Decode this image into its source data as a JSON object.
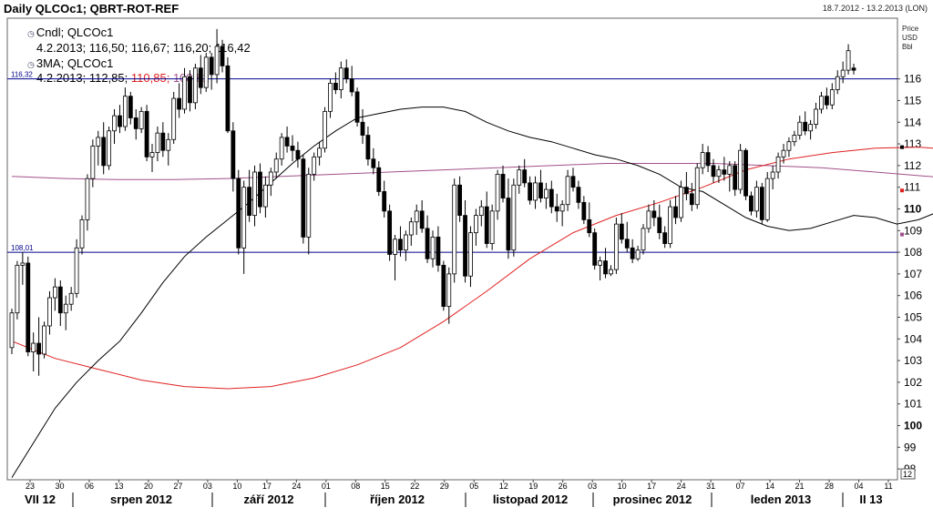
{
  "header": {
    "title": "Daily QLCOc1; QBRT-ROT-REF",
    "date_range": "18.7.2012 - 13.2.2013 (LON)"
  },
  "units": [
    "Price",
    "USD",
    "Bbl"
  ],
  "legend": {
    "cndl_label": "Cndl; QLCOc1",
    "cndl_values": "4.2.2013; 116,50; 116,67; 116,20; 116,42",
    "ma_label": "3MA; QLCOc1",
    "ma_date": "4.2.2013;",
    "ma_v1": "112,85;",
    "ma_v2": "110,85;",
    "ma_v3": "108,82"
  },
  "colors": {
    "background": "#ffffff",
    "grid_line": "#00008b",
    "ma_short": "#000000",
    "ma_mid": "#e02020",
    "ma_long": "#a0508a"
  },
  "chart_data": {
    "type": "candlestick",
    "ylim": [
      97.5,
      118.8
    ],
    "y_ticks": [
      98,
      99,
      100,
      101,
      102,
      103,
      104,
      105,
      106,
      107,
      108,
      109,
      110,
      111,
      112,
      113,
      114,
      115,
      116
    ],
    "y_ticks_bold": [
      100,
      110
    ],
    "x_day_ticks": [
      "23",
      "30",
      "06",
      "13",
      "20",
      "27",
      "03",
      "10",
      "17",
      "24",
      "01",
      "08",
      "15",
      "22",
      "29",
      "05",
      "12",
      "19",
      "26",
      "03",
      "10",
      "17",
      "24",
      "31",
      "07",
      "14",
      "21",
      "28",
      "04",
      "11"
    ],
    "month_labels": [
      "VII 12",
      "srpen 2012",
      "září 2012",
      "říjen 2012",
      "listopad 2012",
      "prosinec 2012",
      "leden 2013",
      "II 13"
    ],
    "axis_corner_label": "12",
    "hlines": [
      {
        "value": 116.0,
        "label": "116,32"
      },
      {
        "value": 108.0,
        "label": "108,01"
      }
    ],
    "last_markers": [
      {
        "value": 112.85,
        "color": "#000000"
      },
      {
        "value": 110.85,
        "color": "#e02020"
      },
      {
        "value": 108.82,
        "color": "#a0508a"
      }
    ],
    "candles": [
      [
        103.6,
        105.4,
        103.3,
        105.2
      ],
      [
        105.2,
        107.6,
        104.9,
        107.4
      ],
      [
        107.4,
        108.0,
        106.5,
        107.5
      ],
      [
        107.5,
        107.8,
        103.2,
        103.4
      ],
      [
        103.4,
        104.3,
        102.5,
        103.8
      ],
      [
        103.8,
        105.0,
        102.3,
        103.3
      ],
      [
        103.3,
        104.8,
        103.1,
        104.6
      ],
      [
        104.6,
        106.2,
        104.2,
        105.9
      ],
      [
        105.9,
        106.8,
        105.3,
        106.4
      ],
      [
        106.4,
        106.7,
        104.6,
        105.2
      ],
      [
        105.2,
        106.0,
        104.4,
        105.6
      ],
      [
        105.6,
        106.4,
        105.3,
        106.1
      ],
      [
        106.1,
        108.6,
        105.9,
        108.2
      ],
      [
        108.2,
        109.7,
        107.9,
        109.5
      ],
      [
        109.5,
        111.6,
        109.0,
        111.4
      ],
      [
        111.4,
        113.2,
        111.0,
        112.9
      ],
      [
        112.9,
        113.6,
        112.0,
        113.3
      ],
      [
        113.3,
        114.0,
        111.6,
        112.0
      ],
      [
        112.0,
        113.8,
        111.8,
        113.6
      ],
      [
        113.6,
        114.6,
        113.0,
        114.3
      ],
      [
        114.3,
        114.8,
        113.5,
        113.8
      ],
      [
        113.8,
        115.6,
        113.6,
        115.2
      ],
      [
        115.2,
        115.4,
        113.9,
        114.2
      ],
      [
        114.2,
        114.6,
        113.2,
        113.7
      ],
      [
        113.7,
        114.7,
        113.5,
        114.5
      ],
      [
        114.5,
        114.8,
        112.2,
        112.4
      ],
      [
        112.4,
        113.0,
        111.7,
        112.6
      ],
      [
        112.6,
        113.8,
        112.2,
        113.5
      ],
      [
        113.5,
        114.0,
        112.4,
        112.7
      ],
      [
        112.7,
        113.5,
        112.0,
        113.2
      ],
      [
        113.2,
        115.4,
        113.0,
        115.1
      ],
      [
        115.1,
        115.8,
        114.2,
        114.6
      ],
      [
        114.6,
        116.5,
        114.4,
        116.1
      ],
      [
        116.1,
        116.4,
        114.5,
        114.9
      ],
      [
        114.9,
        116.7,
        114.6,
        116.5
      ],
      [
        116.5,
        117.1,
        115.3,
        115.6
      ],
      [
        115.6,
        117.2,
        115.4,
        117.0
      ],
      [
        117.0,
        117.2,
        115.5,
        116.2
      ],
      [
        116.2,
        118.3,
        115.8,
        117.5
      ],
      [
        117.5,
        117.8,
        116.3,
        116.6
      ],
      [
        116.6,
        117.0,
        113.5,
        113.6
      ],
      [
        113.6,
        114.0,
        110.8,
        111.4
      ],
      [
        111.4,
        111.8,
        107.9,
        108.2
      ],
      [
        108.2,
        111.3,
        107.0,
        111.0
      ],
      [
        111.0,
        111.8,
        109.4,
        109.7
      ],
      [
        109.7,
        112.0,
        109.2,
        111.7
      ],
      [
        111.7,
        112.1,
        109.8,
        110.1
      ],
      [
        110.1,
        111.5,
        109.6,
        111.1
      ],
      [
        111.1,
        111.9,
        110.6,
        111.7
      ],
      [
        111.7,
        112.6,
        111.4,
        112.3
      ],
      [
        112.3,
        113.5,
        112.0,
        113.3
      ],
      [
        113.3,
        113.8,
        112.6,
        112.9
      ],
      [
        112.9,
        113.4,
        112.2,
        112.7
      ],
      [
        112.7,
        113.1,
        111.9,
        112.3
      ],
      [
        112.3,
        112.5,
        108.4,
        108.7
      ],
      [
        108.7,
        111.9,
        107.9,
        111.6
      ],
      [
        111.6,
        112.6,
        111.3,
        112.4
      ],
      [
        112.4,
        113.1,
        112.0,
        112.8
      ],
      [
        112.8,
        114.7,
        112.6,
        114.5
      ],
      [
        114.5,
        116.0,
        114.2,
        115.8
      ],
      [
        115.8,
        116.3,
        115.3,
        115.5
      ],
      [
        115.5,
        116.8,
        115.1,
        116.5
      ],
      [
        116.5,
        116.9,
        115.8,
        116.0
      ],
      [
        116.0,
        116.6,
        115.2,
        115.4
      ],
      [
        115.4,
        115.6,
        113.8,
        114.0
      ],
      [
        114.0,
        114.6,
        113.0,
        113.4
      ],
      [
        113.4,
        113.8,
        112.0,
        112.3
      ],
      [
        112.3,
        112.8,
        111.6,
        111.9
      ],
      [
        111.9,
        112.2,
        110.6,
        110.8
      ],
      [
        110.8,
        111.3,
        109.6,
        109.9
      ],
      [
        109.9,
        110.2,
        107.6,
        107.9
      ],
      [
        107.9,
        108.8,
        106.7,
        108.6
      ],
      [
        108.6,
        109.2,
        107.8,
        108.1
      ],
      [
        108.1,
        109.0,
        107.6,
        108.8
      ],
      [
        108.8,
        109.6,
        108.3,
        109.4
      ],
      [
        109.4,
        110.2,
        108.8,
        109.9
      ],
      [
        109.9,
        110.4,
        108.9,
        109.1
      ],
      [
        109.1,
        109.7,
        107.5,
        107.7
      ],
      [
        107.7,
        109.0,
        107.3,
        108.7
      ],
      [
        108.7,
        109.2,
        107.1,
        107.4
      ],
      [
        107.4,
        107.6,
        105.3,
        105.5
      ],
      [
        105.5,
        107.3,
        104.7,
        107.0
      ],
      [
        107.0,
        111.4,
        106.6,
        111.1
      ],
      [
        111.1,
        111.5,
        109.4,
        109.7
      ],
      [
        109.7,
        110.4,
        106.6,
        106.9
      ],
      [
        106.9,
        109.2,
        106.4,
        108.9
      ],
      [
        108.9,
        110.0,
        108.3,
        109.7
      ],
      [
        109.7,
        110.4,
        109.2,
        110.1
      ],
      [
        110.1,
        110.8,
        108.2,
        108.4
      ],
      [
        108.4,
        110.2,
        108.1,
        109.9
      ],
      [
        109.9,
        111.8,
        109.5,
        111.6
      ],
      [
        111.6,
        112.0,
        110.3,
        110.5
      ],
      [
        110.5,
        111.4,
        107.7,
        108.1
      ],
      [
        108.1,
        111.4,
        107.8,
        111.1
      ],
      [
        111.1,
        112.0,
        110.7,
        111.8
      ],
      [
        111.8,
        112.3,
        111.0,
        111.2
      ],
      [
        111.2,
        111.5,
        110.2,
        110.4
      ],
      [
        110.4,
        111.5,
        110.0,
        111.2
      ],
      [
        111.2,
        111.8,
        110.3,
        110.5
      ],
      [
        110.5,
        111.2,
        110.0,
        110.9
      ],
      [
        110.9,
        111.3,
        109.8,
        110.1
      ],
      [
        110.1,
        110.7,
        109.4,
        109.9
      ],
      [
        109.9,
        110.4,
        109.2,
        110.2
      ],
      [
        110.2,
        111.8,
        109.9,
        111.5
      ],
      [
        111.5,
        111.9,
        110.8,
        111.0
      ],
      [
        111.0,
        111.3,
        110.0,
        110.3
      ],
      [
        110.3,
        110.6,
        109.3,
        109.5
      ],
      [
        109.5,
        110.3,
        108.7,
        108.9
      ],
      [
        108.9,
        109.1,
        107.2,
        107.4
      ],
      [
        107.4,
        107.8,
        106.7,
        107.6
      ],
      [
        107.6,
        108.2,
        106.8,
        107.0
      ],
      [
        107.0,
        107.4,
        106.9,
        107.2
      ],
      [
        107.2,
        109.6,
        107.0,
        109.3
      ],
      [
        109.3,
        109.8,
        108.4,
        108.6
      ],
      [
        108.6,
        109.4,
        108.0,
        108.2
      ],
      [
        108.2,
        108.6,
        107.5,
        107.7
      ],
      [
        107.7,
        108.3,
        107.6,
        108.1
      ],
      [
        108.1,
        109.3,
        107.9,
        109.1
      ],
      [
        109.1,
        110.2,
        108.9,
        109.9
      ],
      [
        109.9,
        110.4,
        109.2,
        109.6
      ],
      [
        109.6,
        110.2,
        108.6,
        108.9
      ],
      [
        108.9,
        109.2,
        108.2,
        108.4
      ],
      [
        108.4,
        110.4,
        108.2,
        110.1
      ],
      [
        110.1,
        110.6,
        109.3,
        109.6
      ],
      [
        109.6,
        111.3,
        109.4,
        111.0
      ],
      [
        111.0,
        111.7,
        110.4,
        110.7
      ],
      [
        110.7,
        111.2,
        109.9,
        110.2
      ],
      [
        110.2,
        112.1,
        110.0,
        111.9
      ],
      [
        111.9,
        113.0,
        111.6,
        112.6
      ],
      [
        112.6,
        112.9,
        111.7,
        112.0
      ],
      [
        112.0,
        112.3,
        111.2,
        111.5
      ],
      [
        111.5,
        112.0,
        111.2,
        111.8
      ],
      [
        111.8,
        112.4,
        111.3,
        111.6
      ],
      [
        111.6,
        112.2,
        110.8,
        112.0
      ],
      [
        112.0,
        112.2,
        110.6,
        110.9
      ],
      [
        110.9,
        113.0,
        110.7,
        112.7
      ],
      [
        112.7,
        112.8,
        110.4,
        110.6
      ],
      [
        110.6,
        110.8,
        109.7,
        109.9
      ],
      [
        109.9,
        111.3,
        109.6,
        111.0
      ],
      [
        111.0,
        111.2,
        109.3,
        109.5
      ],
      [
        109.5,
        111.7,
        109.4,
        111.4
      ],
      [
        111.4,
        112.0,
        110.9,
        111.7
      ],
      [
        111.7,
        112.6,
        111.4,
        112.4
      ],
      [
        112.4,
        113.0,
        112.1,
        112.7
      ],
      [
        112.7,
        113.3,
        112.4,
        113.1
      ],
      [
        113.1,
        113.6,
        112.9,
        113.4
      ],
      [
        113.4,
        114.3,
        113.2,
        114.0
      ],
      [
        114.0,
        114.5,
        113.4,
        113.6
      ],
      [
        113.6,
        114.1,
        113.2,
        113.9
      ],
      [
        113.9,
        114.9,
        113.7,
        114.6
      ],
      [
        114.6,
        115.4,
        114.4,
        115.2
      ],
      [
        115.2,
        115.6,
        114.6,
        114.8
      ],
      [
        114.8,
        115.8,
        114.6,
        115.5
      ],
      [
        115.5,
        116.4,
        115.3,
        116.1
      ],
      [
        116.1,
        116.8,
        115.8,
        116.4
      ],
      [
        116.4,
        117.6,
        116.2,
        117.3
      ],
      [
        116.5,
        116.7,
        116.2,
        116.4
      ]
    ],
    "ma_short": [
      [
        0,
        97.6
      ],
      [
        4,
        99.2
      ],
      [
        8,
        100.8
      ],
      [
        12,
        102.0
      ],
      [
        16,
        103.0
      ],
      [
        20,
        103.9
      ],
      [
        24,
        105.2
      ],
      [
        28,
        106.6
      ],
      [
        32,
        107.8
      ],
      [
        36,
        108.7
      ],
      [
        40,
        109.5
      ],
      [
        44,
        110.3
      ],
      [
        48,
        111.2
      ],
      [
        52,
        112.1
      ],
      [
        56,
        112.9
      ],
      [
        60,
        113.6
      ],
      [
        64,
        114.2
      ],
      [
        68,
        114.4
      ],
      [
        72,
        114.6
      ],
      [
        76,
        114.7
      ],
      [
        80,
        114.7
      ],
      [
        84,
        114.5
      ],
      [
        88,
        114.0
      ],
      [
        92,
        113.6
      ],
      [
        96,
        113.3
      ],
      [
        100,
        113.1
      ],
      [
        104,
        112.8
      ],
      [
        108,
        112.5
      ],
      [
        112,
        112.3
      ],
      [
        116,
        112.0
      ],
      [
        120,
        111.6
      ],
      [
        124,
        111.0
      ],
      [
        128,
        110.8
      ],
      [
        132,
        110.2
      ],
      [
        136,
        109.6
      ],
      [
        140,
        109.2
      ],
      [
        144,
        109.0
      ],
      [
        148,
        109.1
      ],
      [
        152,
        109.4
      ],
      [
        156,
        109.7
      ],
      [
        160,
        109.6
      ],
      [
        164,
        109.3
      ],
      [
        168,
        109.5
      ],
      [
        172,
        109.9
      ],
      [
        176,
        110.2
      ],
      [
        180,
        109.9
      ],
      [
        184,
        109.6
      ],
      [
        188,
        109.7
      ],
      [
        192,
        109.6
      ],
      [
        196,
        109.8
      ],
      [
        200,
        110.2
      ],
      [
        204,
        110.6
      ],
      [
        208,
        110.9
      ],
      [
        212,
        111.1
      ],
      [
        216,
        111.3
      ],
      [
        220,
        111.6
      ],
      [
        224,
        111.8
      ],
      [
        228,
        112.1
      ],
      [
        232,
        112.5
      ],
      [
        236,
        112.85
      ]
    ],
    "ma_mid": [
      [
        0,
        103.9
      ],
      [
        8,
        103.1
      ],
      [
        16,
        102.6
      ],
      [
        24,
        102.1
      ],
      [
        32,
        101.8
      ],
      [
        40,
        101.7
      ],
      [
        48,
        101.8
      ],
      [
        56,
        102.2
      ],
      [
        64,
        102.8
      ],
      [
        72,
        103.6
      ],
      [
        80,
        104.8
      ],
      [
        88,
        106.2
      ],
      [
        96,
        107.7
      ],
      [
        104,
        108.9
      ],
      [
        112,
        109.7
      ],
      [
        120,
        110.3
      ],
      [
        128,
        111.0
      ],
      [
        136,
        111.8
      ],
      [
        144,
        112.3
      ],
      [
        152,
        112.6
      ],
      [
        160,
        112.8
      ],
      [
        168,
        112.85
      ],
      [
        176,
        112.7
      ],
      [
        184,
        112.4
      ],
      [
        192,
        112.0
      ],
      [
        200,
        111.7
      ],
      [
        208,
        111.3
      ],
      [
        216,
        110.9
      ],
      [
        224,
        110.5
      ],
      [
        232,
        110.2
      ],
      [
        240,
        109.9
      ],
      [
        248,
        109.8
      ],
      [
        256,
        109.9
      ],
      [
        264,
        110.1
      ],
      [
        272,
        110.3
      ],
      [
        280,
        110.5
      ],
      [
        288,
        110.6
      ],
      [
        296,
        110.7
      ],
      [
        304,
        110.85
      ]
    ],
    "ma_long": [
      [
        0,
        111.5
      ],
      [
        10,
        111.4
      ],
      [
        20,
        111.35
      ],
      [
        30,
        111.35
      ],
      [
        40,
        111.4
      ],
      [
        50,
        111.5
      ],
      [
        60,
        111.6
      ],
      [
        70,
        111.7
      ],
      [
        80,
        111.8
      ],
      [
        90,
        111.9
      ],
      [
        100,
        112.0
      ],
      [
        110,
        112.1
      ],
      [
        120,
        112.1
      ],
      [
        130,
        112.1
      ],
      [
        140,
        112.0
      ],
      [
        150,
        111.9
      ],
      [
        160,
        111.7
      ],
      [
        170,
        111.5
      ],
      [
        180,
        111.2
      ],
      [
        190,
        110.9
      ],
      [
        200,
        110.5
      ],
      [
        210,
        110.1
      ],
      [
        220,
        109.7
      ],
      [
        230,
        109.3
      ],
      [
        240,
        109.05
      ],
      [
        250,
        108.9
      ],
      [
        260,
        108.82
      ]
    ]
  }
}
